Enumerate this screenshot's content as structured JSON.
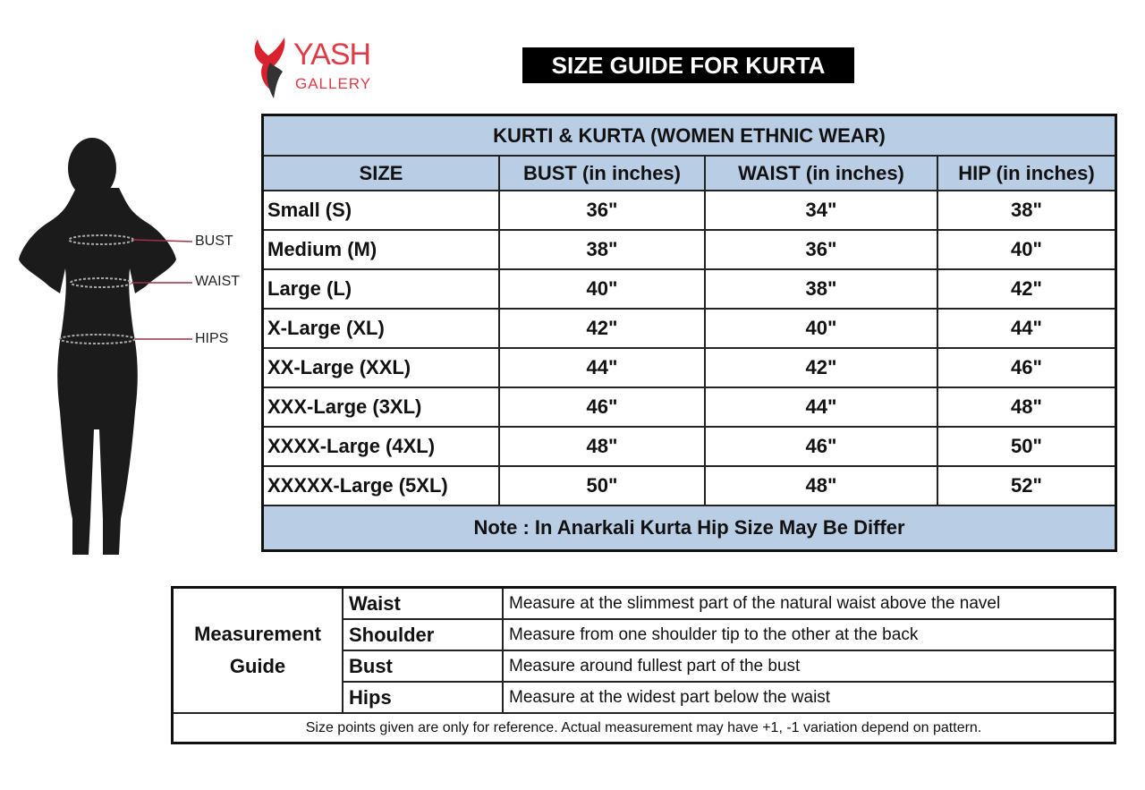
{
  "logo": {
    "line1": "YASH",
    "line2": "GALLERY",
    "colors": {
      "primary": "#e03a46",
      "secondary": "#333333"
    }
  },
  "title": "SIZE GUIDE FOR KURTA",
  "figure": {
    "labels": [
      "BUST",
      "WAIST",
      "HIPS"
    ]
  },
  "size_table": {
    "caption": "KURTI & KURTA (WOMEN ETHNIC WEAR)",
    "columns": [
      "SIZE",
      "BUST (in inches)",
      "WAIST (in inches)",
      "HIP (in inches)"
    ],
    "rows": [
      [
        "Small (S)",
        "36\"",
        "34\"",
        "38\""
      ],
      [
        "Medium (M)",
        "38\"",
        "36\"",
        "40\""
      ],
      [
        "Large (L)",
        "40\"",
        "38\"",
        "42\""
      ],
      [
        "X-Large (XL)",
        "42\"",
        "40\"",
        "44\""
      ],
      [
        "XX-Large (XXL)",
        "44\"",
        "42\"",
        "46\""
      ],
      [
        "XXX-Large (3XL)",
        "46\"",
        "44\"",
        "48\""
      ],
      [
        "XXXX-Large (4XL)",
        "48\"",
        "46\"",
        "50\""
      ],
      [
        "XXXXX-Large (5XL)",
        "50\"",
        "48\"",
        "52\""
      ]
    ],
    "note": "Note : In Anarkali Kurta Hip Size May Be Differ",
    "header_color": "#b9cde4"
  },
  "guide": {
    "caption_line1": "Measurement",
    "caption_line2": "Guide",
    "rows": [
      {
        "label": "Waist",
        "text": "Measure at the slimmest part of the natural waist above the navel"
      },
      {
        "label": "Shoulder",
        "text": "Measure from one shoulder tip to the other at the back"
      },
      {
        "label": "Bust",
        "text": "Measure around fullest part of the bust"
      },
      {
        "label": "Hips",
        "text": "Measure at the widest part below the waist"
      }
    ],
    "footer": "Size points given are only for reference. Actual measurement may have +1, -1 variation depend on pattern."
  }
}
